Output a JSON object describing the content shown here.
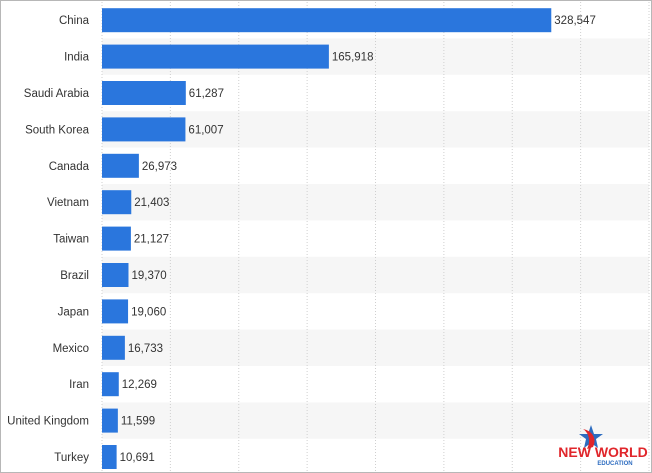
{
  "chart_data": {
    "type": "bar",
    "orientation": "horizontal",
    "categories": [
      "China",
      "India",
      "Saudi Arabia",
      "South Korea",
      "Canada",
      "Vietnam",
      "Taiwan",
      "Brazil",
      "Japan",
      "Mexico",
      "Iran",
      "United Kingdom",
      "Turkey"
    ],
    "values": [
      328547,
      165918,
      61287,
      61007,
      26973,
      21403,
      21127,
      19370,
      19060,
      16733,
      12269,
      11599,
      10691
    ],
    "value_labels": [
      "328,547",
      "165,918",
      "61,287",
      "61,007",
      "26,973",
      "21,403",
      "21,127",
      "19,370",
      "19,060",
      "16,733",
      "12,269",
      "11,599",
      "10,691"
    ],
    "title": "",
    "xlabel": "",
    "ylabel": "",
    "xlim": [
      0,
      400000
    ],
    "grid": true,
    "bar_color": "#2a76dd",
    "row_alt_color": "#f6f6f6",
    "grid_color": "#cfcfcf"
  },
  "logo": {
    "text_line1": "NEW WORLD",
    "text_line2": "EDUCATION",
    "color_red": "#e0262b",
    "color_blue": "#2d6cc0"
  }
}
